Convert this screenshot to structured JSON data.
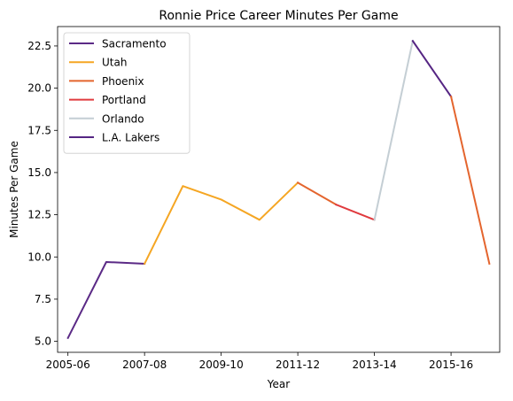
{
  "chart_data": {
    "type": "line",
    "title": "Ronnie Price Career Minutes Per Game",
    "xlabel": "Year",
    "ylabel": "Minutes Per Game",
    "x_tick_labels": [
      "2005-06",
      "2007-08",
      "2009-10",
      "2011-12",
      "2013-14",
      "2015-16"
    ],
    "y_ticks": [
      5.0,
      7.5,
      10.0,
      12.5,
      15.0,
      17.5,
      20.0,
      22.5
    ],
    "y_tick_labels": [
      "5.0",
      "7.5",
      "10.0",
      "12.5",
      "15.0",
      "17.5",
      "20.0",
      "22.5"
    ],
    "ylim": [
      4.35,
      23.65
    ],
    "season_index_range": [
      -0.27,
      11.27
    ],
    "legend_position": "upper-left",
    "grid": false,
    "seasons": [
      "2005-06",
      "2006-07",
      "2007-08",
      "2008-09",
      "2009-10",
      "2010-11",
      "2011-12",
      "2012-13",
      "2013-14",
      "2014-15",
      "2015-16",
      "2016-17"
    ],
    "series": [
      {
        "name": "Sacramento",
        "color": "#5b2a86",
        "x": [
          "2005-06",
          "2006-07",
          "2007-08"
        ],
        "y": [
          5.2,
          9.7,
          9.6
        ]
      },
      {
        "name": "Utah",
        "color": "#f5a623",
        "x": [
          "2007-08",
          "2008-09",
          "2009-10",
          "2010-11",
          "2011-12"
        ],
        "y": [
          9.6,
          14.2,
          13.4,
          12.2,
          14.4
        ]
      },
      {
        "name": "Phoenix",
        "color": "#e4652e",
        "x": [
          "2011-12",
          "2012-13"
        ],
        "y": [
          14.4,
          13.1
        ]
      },
      {
        "name": "Portland",
        "color": "#e03a3e",
        "x": [
          "2012-13",
          "2013-14"
        ],
        "y": [
          13.1,
          12.2
        ]
      },
      {
        "name": "Orlando",
        "color": "#c4ced4",
        "x": [
          "2013-14",
          "2014-15"
        ],
        "y": [
          12.2,
          22.8
        ]
      },
      {
        "name": "L.A. Lakers",
        "color": "#552583",
        "x": [
          "2014-15",
          "2015-16"
        ],
        "y": [
          22.8,
          19.5
        ]
      },
      {
        "name": "Phoenix",
        "color": "#e4652e",
        "x": [
          "2015-16",
          "2016-17"
        ],
        "y": [
          19.5,
          9.6
        ],
        "in_legend": false
      }
    ]
  }
}
